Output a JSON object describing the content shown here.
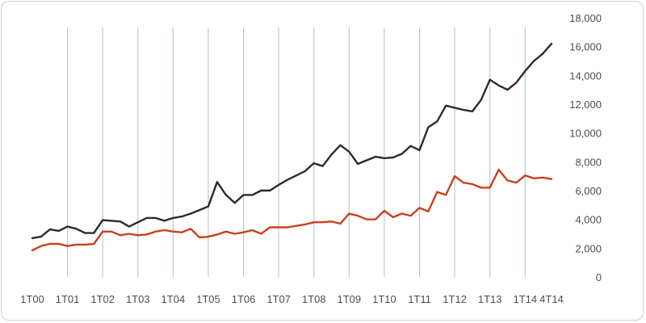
{
  "chart_data": {
    "type": "line",
    "title": "",
    "xlabel": "",
    "ylabel": "",
    "ylim": [
      0,
      18000
    ],
    "yticks": [
      0,
      2000,
      4000,
      6000,
      8000,
      10000,
      12000,
      14000,
      16000,
      18000
    ],
    "ytick_labels": [
      "0",
      "2,000",
      "4,000",
      "6,000",
      "8,000",
      "10,000",
      "12,000",
      "14,000",
      "16,000",
      "18,000"
    ],
    "xtick_labels": [
      "1T00",
      "1T01",
      "1T02",
      "1T03",
      "1T04",
      "1T05",
      "1T06",
      "1T07",
      "1T08",
      "1T09",
      "1T10",
      "1T11",
      "1T12",
      "1T13",
      "1T14",
      "4T14"
    ],
    "xtick_index": [
      0,
      4,
      8,
      12,
      16,
      20,
      24,
      28,
      32,
      36,
      40,
      44,
      48,
      52,
      56,
      59
    ],
    "grid": "vertical lines at year starts",
    "y_axis_position": "right",
    "series": [
      {
        "color": "#2b2b2b",
        "values": [
          2700,
          2800,
          3300,
          3200,
          3500,
          3350,
          3050,
          3050,
          3950,
          3900,
          3850,
          3500,
          3800,
          4100,
          4100,
          3900,
          4100,
          4200,
          4400,
          4650,
          4900,
          6600,
          5700,
          5150,
          5700,
          5700,
          6000,
          6000,
          6400,
          6750,
          7050,
          7350,
          7900,
          7700,
          8500,
          9150,
          8700,
          7850,
          8100,
          8350,
          8250,
          8300,
          8550,
          9100,
          8800,
          10400,
          10800,
          11900,
          11750,
          11600,
          11500,
          12300,
          13700,
          13300,
          13000,
          13500,
          14300,
          15000,
          15500,
          16200
        ]
      },
      {
        "color": "#c9401b",
        "values": [
          1850,
          2150,
          2300,
          2300,
          2150,
          2250,
          2250,
          2300,
          3150,
          3150,
          2900,
          3000,
          2900,
          2950,
          3150,
          3250,
          3150,
          3100,
          3350,
          2750,
          2800,
          2950,
          3150,
          3000,
          3100,
          3250,
          3000,
          3450,
          3450,
          3450,
          3550,
          3650,
          3800,
          3800,
          3850,
          3700,
          4400,
          4250,
          4000,
          4000,
          4600,
          4150,
          4400,
          4250,
          4800,
          4550,
          5900,
          5700,
          7000,
          6550,
          6450,
          6200,
          6200,
          7450,
          6700,
          6550,
          7050,
          6850,
          6900,
          6800
        ]
      }
    ]
  }
}
